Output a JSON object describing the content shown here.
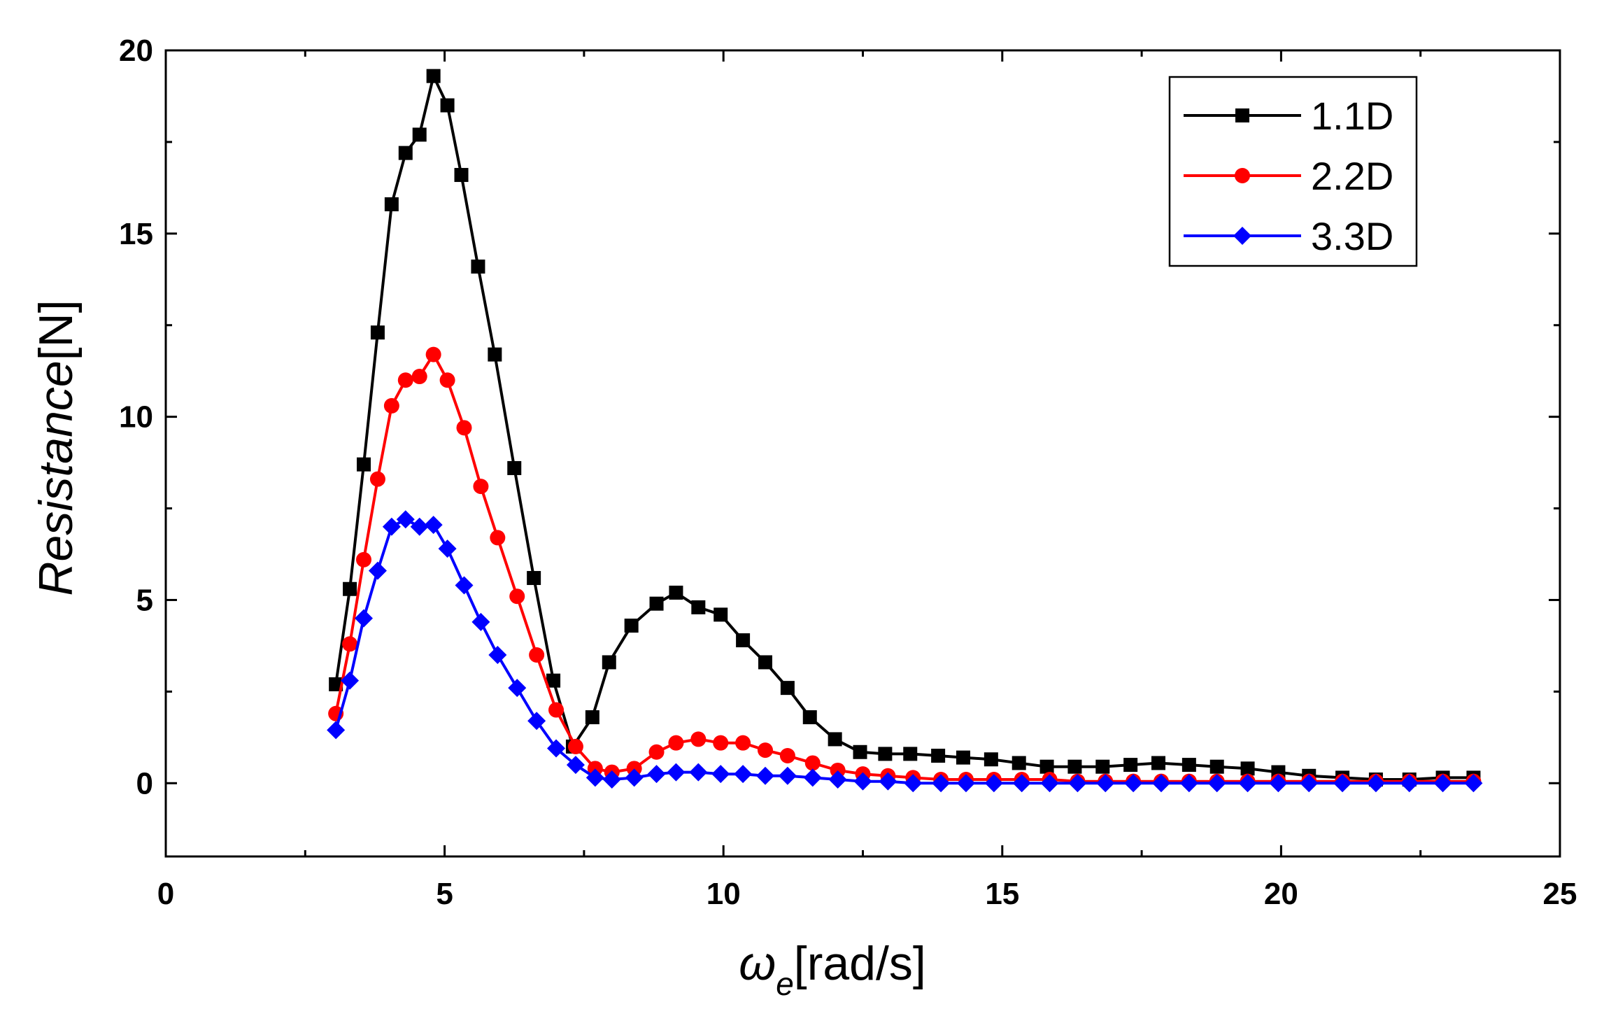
{
  "chart_data": {
    "type": "line",
    "title": "",
    "xlabel": {
      "symbol": "ω",
      "subscript": "e",
      "unit": "[rad/s]"
    },
    "ylabel": {
      "italic": "Resistance",
      "unit": "[N]"
    },
    "xlim": [
      0,
      25
    ],
    "ylim": [
      -2,
      20
    ],
    "xticks": [
      0,
      5,
      10,
      15,
      20,
      25
    ],
    "yticks": [
      0,
      5,
      10,
      15,
      20
    ],
    "legend_position": "top-right",
    "series": [
      {
        "name": "1.1D",
        "color": "#000000",
        "marker": "square",
        "x": [
          3.05,
          3.3,
          3.55,
          3.8,
          4.05,
          4.3,
          4.55,
          4.8,
          5.05,
          5.3,
          5.6,
          5.9,
          6.25,
          6.6,
          6.95,
          7.3,
          7.65,
          7.95,
          8.35,
          8.8,
          9.15,
          9.55,
          9.95,
          10.35,
          10.75,
          11.15,
          11.55,
          12.0,
          12.45,
          12.9,
          13.35,
          13.85,
          14.3,
          14.8,
          15.3,
          15.8,
          16.3,
          16.8,
          17.3,
          17.8,
          18.35,
          18.85,
          19.4,
          19.95,
          20.5,
          21.1,
          21.7,
          22.3,
          22.9,
          23.45
        ],
        "y": [
          2.7,
          5.3,
          8.7,
          12.3,
          15.8,
          17.2,
          17.7,
          19.3,
          18.5,
          16.6,
          14.1,
          11.7,
          8.6,
          5.6,
          2.8,
          1.0,
          1.8,
          3.3,
          4.3,
          4.9,
          5.2,
          4.8,
          4.6,
          3.9,
          3.3,
          2.6,
          1.8,
          1.2,
          0.85,
          0.8,
          0.8,
          0.75,
          0.7,
          0.65,
          0.55,
          0.45,
          0.45,
          0.45,
          0.5,
          0.55,
          0.5,
          0.45,
          0.4,
          0.3,
          0.2,
          0.15,
          0.1,
          0.1,
          0.15,
          0.15
        ]
      },
      {
        "name": "2.2D",
        "color": "#ff0000",
        "marker": "circle",
        "x": [
          3.05,
          3.3,
          3.55,
          3.8,
          4.05,
          4.3,
          4.55,
          4.8,
          5.05,
          5.35,
          5.65,
          5.95,
          6.3,
          6.65,
          7.0,
          7.35,
          7.7,
          8.0,
          8.4,
          8.8,
          9.15,
          9.55,
          9.95,
          10.35,
          10.75,
          11.15,
          11.6,
          12.05,
          12.5,
          12.95,
          13.4,
          13.9,
          14.35,
          14.85,
          15.35,
          15.85,
          16.35,
          16.85,
          17.35,
          17.85,
          18.35,
          18.85,
          19.4,
          19.95,
          20.5,
          21.1,
          21.7,
          22.3,
          22.9,
          23.45
        ],
        "y": [
          1.9,
          3.8,
          6.1,
          8.3,
          10.3,
          11.0,
          11.1,
          11.7,
          11.0,
          9.7,
          8.1,
          6.7,
          5.1,
          3.5,
          2.0,
          1.0,
          0.4,
          0.3,
          0.4,
          0.85,
          1.1,
          1.2,
          1.1,
          1.1,
          0.9,
          0.75,
          0.55,
          0.35,
          0.25,
          0.2,
          0.15,
          0.1,
          0.1,
          0.1,
          0.1,
          0.1,
          0.05,
          0.05,
          0.05,
          0.05,
          0.05,
          0.05,
          0.05,
          0.05,
          0.05,
          0.05,
          0.05,
          0.05,
          0.05,
          0.05
        ]
      },
      {
        "name": "3.3D",
        "color": "#0000ff",
        "marker": "diamond",
        "x": [
          3.05,
          3.3,
          3.55,
          3.8,
          4.05,
          4.3,
          4.55,
          4.8,
          5.05,
          5.35,
          5.65,
          5.95,
          6.3,
          6.65,
          7.0,
          7.35,
          7.7,
          8.0,
          8.4,
          8.8,
          9.15,
          9.55,
          9.95,
          10.35,
          10.75,
          11.15,
          11.6,
          12.05,
          12.5,
          12.95,
          13.4,
          13.9,
          14.35,
          14.85,
          15.35,
          15.85,
          16.35,
          16.85,
          17.35,
          17.85,
          18.35,
          18.85,
          19.4,
          19.95,
          20.5,
          21.1,
          21.7,
          22.3,
          22.9,
          23.45
        ],
        "y": [
          1.45,
          2.8,
          4.5,
          5.8,
          7.0,
          7.2,
          7.0,
          7.05,
          6.4,
          5.4,
          4.4,
          3.5,
          2.6,
          1.7,
          0.95,
          0.5,
          0.15,
          0.1,
          0.15,
          0.25,
          0.3,
          0.3,
          0.25,
          0.25,
          0.2,
          0.2,
          0.15,
          0.1,
          0.05,
          0.05,
          0.0,
          0.0,
          0.0,
          0.0,
          0.0,
          0.0,
          0.0,
          0.0,
          0.0,
          0.0,
          0.0,
          0.0,
          0.0,
          0.0,
          0.0,
          0.0,
          0.0,
          0.0,
          0.0,
          0.0
        ]
      }
    ]
  }
}
